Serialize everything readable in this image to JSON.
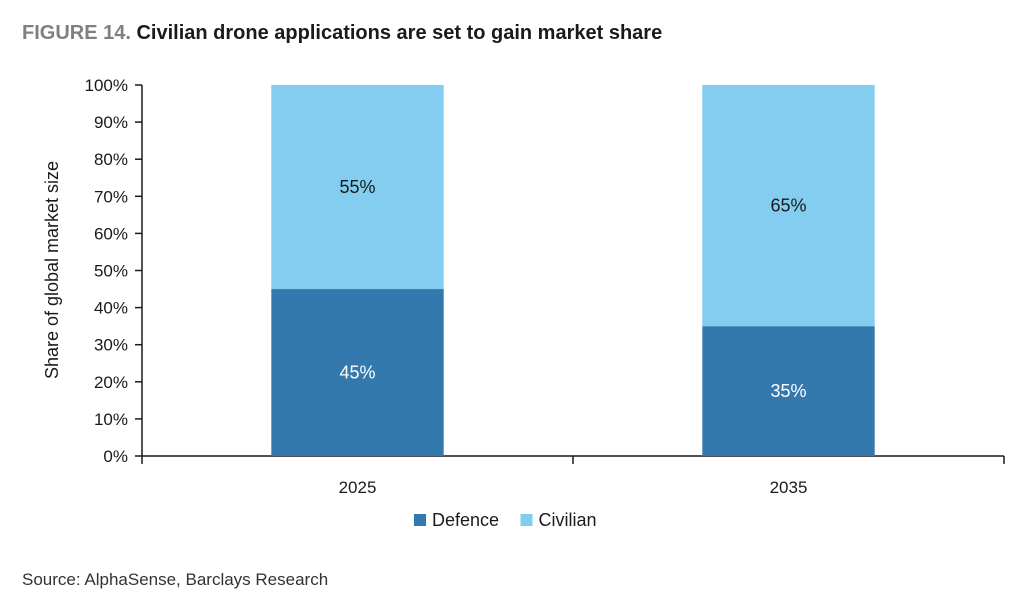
{
  "figure": {
    "label": "FIGURE 14.",
    "title": "Civilian drone applications are set to gain market share"
  },
  "source": "Source: AlphaSense, Barclays Research",
  "chart_data": {
    "type": "bar",
    "stacked": true,
    "categories": [
      "2025",
      "2035"
    ],
    "series": [
      {
        "name": "Defence",
        "values": [
          45,
          35
        ],
        "labels": [
          "45%",
          "35%"
        ],
        "color": "#3479ae"
      },
      {
        "name": "Civilian",
        "values": [
          55,
          65
        ],
        "labels": [
          "55%",
          "65%"
        ],
        "color": "#82cdf0"
      }
    ],
    "ylabel": "Share of global market size",
    "xlabel": "",
    "ylim": [
      0,
      100
    ],
    "yticks": [
      "0%",
      "10%",
      "20%",
      "30%",
      "40%",
      "50%",
      "60%",
      "70%",
      "80%",
      "90%",
      "100%"
    ],
    "legend_position": "bottom",
    "grid": false
  }
}
